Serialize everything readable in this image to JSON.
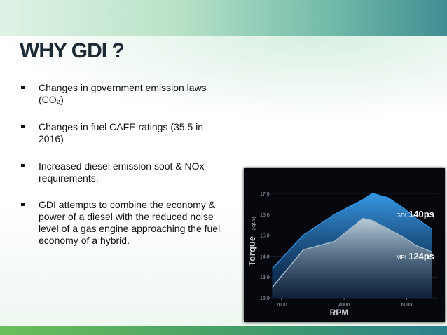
{
  "title": "WHY GDI ?",
  "bullets": [
    "Changes in government emission laws (CO₂)",
    "Changes in fuel CAFE ratings (35.5 in 2016)",
    "Increased diesel emission soot & NOx requirements.",
    "GDI attempts to combine the economy & power of a diesel with the reduced noise level of a gas engine approaching the fuel economy of a hybrid."
  ],
  "chart_data": {
    "type": "area",
    "y_label": "Torque",
    "y_unit": "(kgf.m)",
    "x_label": "RPM",
    "x": [
      1700,
      2700,
      3700,
      4600,
      4900,
      5400,
      5900,
      6300,
      6800
    ],
    "series": [
      {
        "name": "GDI",
        "color": "#2f8fe0",
        "values": [
          13.4,
          15.0,
          16.0,
          16.7,
          17.0,
          16.8,
          16.3,
          15.8,
          15.3
        ]
      },
      {
        "name": "MPI",
        "color": "#9fb8c8",
        "values": [
          12.5,
          14.3,
          14.7,
          15.8,
          15.7,
          15.3,
          14.9,
          14.5,
          14.2
        ]
      }
    ],
    "annotations": [
      "140ps",
      "124ps"
    ],
    "xlim": [
      1400,
      7000
    ],
    "xticks": [
      2000,
      4000,
      6000
    ],
    "ylim": [
      12,
      17.3
    ],
    "yticks": [
      {
        "value": 12,
        "label": "12.0"
      },
      {
        "value": 13,
        "label": "13.0"
      },
      {
        "value": 14,
        "label": "14.0"
      },
      {
        "value": 15,
        "label": "15.0"
      },
      {
        "value": 16,
        "label": "16.0"
      },
      {
        "value": 17,
        "label": "17.0"
      }
    ]
  }
}
